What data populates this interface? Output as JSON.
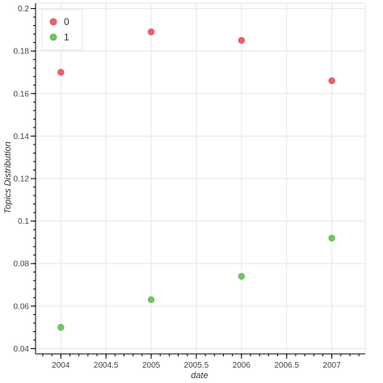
{
  "chart_data": {
    "type": "scatter",
    "title": "",
    "xlabel": "date",
    "ylabel": "Topics Distribution",
    "xlim": [
      2003.72,
      2007.37
    ],
    "ylim": [
      0.0375,
      0.2025
    ],
    "x_ticks": [
      2004,
      2004.5,
      2005,
      2005.5,
      2006,
      2006.5,
      2007
    ],
    "x_tick_labels": [
      "2004",
      "2004.5",
      "2005",
      "2005.5",
      "2006",
      "2006.5",
      "2007"
    ],
    "y_ticks": [
      0.04,
      0.06,
      0.08,
      0.1,
      0.12,
      0.14,
      0.16,
      0.18,
      0.2
    ],
    "y_tick_labels": [
      "0.04",
      "0.06",
      "0.08",
      "0.1",
      "0.12",
      "0.14",
      "0.16",
      "0.18",
      "0.2"
    ],
    "grid": true,
    "legend_position": "top-left",
    "series": [
      {
        "name": "0",
        "color": "#e8505f",
        "x": [
          2004,
          2005,
          2006,
          2007
        ],
        "y": [
          0.17,
          0.189,
          0.185,
          0.166
        ]
      },
      {
        "name": "1",
        "color": "#66bb55",
        "x": [
          2004,
          2005,
          2006,
          2007
        ],
        "y": [
          0.05,
          0.063,
          0.074,
          0.092
        ]
      }
    ]
  }
}
